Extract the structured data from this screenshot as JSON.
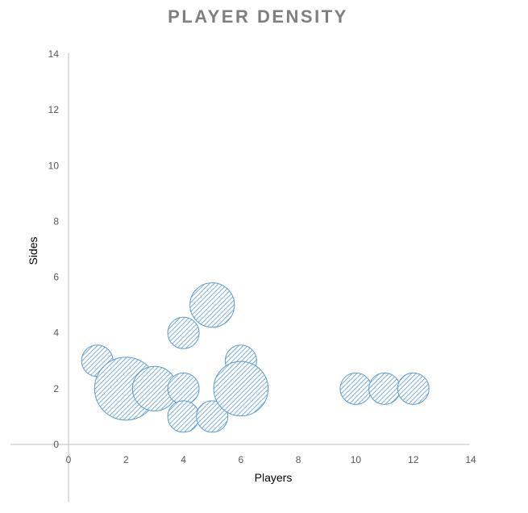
{
  "chart_data": {
    "type": "bubble",
    "title": "PLAYER DENSITY",
    "xlabel": "Players",
    "ylabel": "Sides",
    "xlim": [
      0,
      14
    ],
    "ylim": [
      0,
      14
    ],
    "x_ticks": [
      "0",
      "2",
      "4",
      "6",
      "8",
      "10",
      "12",
      "14"
    ],
    "y_ticks": [
      "0",
      "2",
      "4",
      "6",
      "8",
      "10",
      "12",
      "14"
    ],
    "grid": false,
    "legend": "none",
    "color": "#5b9bd5",
    "points": [
      {
        "x": 1,
        "y": 3,
        "size": 1
      },
      {
        "x": 2,
        "y": 2,
        "size": 4
      },
      {
        "x": 3,
        "y": 2,
        "size": 2
      },
      {
        "x": 4,
        "y": 4,
        "size": 1
      },
      {
        "x": 4,
        "y": 2,
        "size": 1
      },
      {
        "x": 4,
        "y": 1,
        "size": 1
      },
      {
        "x": 5,
        "y": 5,
        "size": 2
      },
      {
        "x": 5,
        "y": 1,
        "size": 1
      },
      {
        "x": 6,
        "y": 3,
        "size": 1
      },
      {
        "x": 6,
        "y": 2,
        "size": 3
      },
      {
        "x": 10,
        "y": 2,
        "size": 1
      },
      {
        "x": 11,
        "y": 2,
        "size": 1
      },
      {
        "x": 12,
        "y": 2,
        "size": 1
      }
    ]
  }
}
